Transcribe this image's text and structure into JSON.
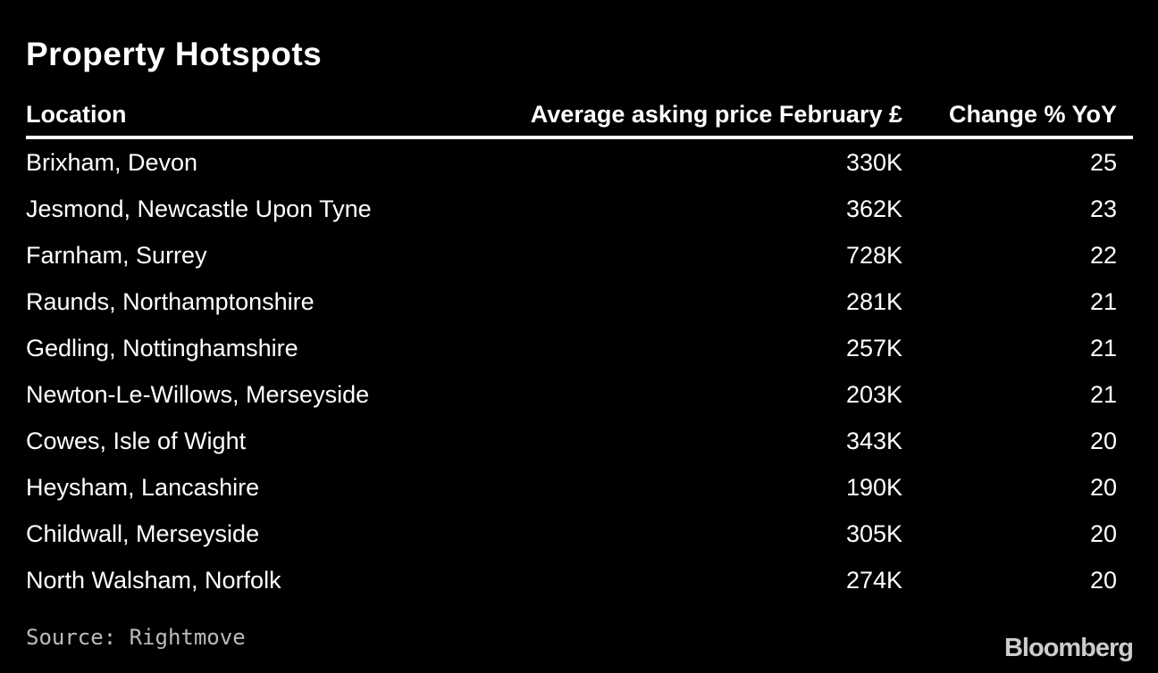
{
  "header": {
    "title": "Property Hotspots"
  },
  "table": {
    "columns": [
      "Location",
      "Average asking price February £",
      "Change % YoY"
    ],
    "rows": [
      [
        "Brixham, Devon",
        "330K",
        "25"
      ],
      [
        "Jesmond, Newcastle Upon Tyne",
        "362K",
        "23"
      ],
      [
        "Farnham, Surrey",
        "728K",
        "22"
      ],
      [
        "Raunds, Northamptonshire",
        "281K",
        "21"
      ],
      [
        "Gedling, Nottinghamshire",
        "257K",
        "21"
      ],
      [
        "Newton-Le-Willows, Merseyside",
        "203K",
        "21"
      ],
      [
        "Cowes, Isle of Wight",
        "343K",
        "20"
      ],
      [
        "Heysham, Lancashire",
        "190K",
        "20"
      ],
      [
        "Childwall, Merseyside",
        "305K",
        "20"
      ],
      [
        "North Walsham, Norfolk",
        "274K",
        "20"
      ]
    ]
  },
  "footer": {
    "source": "Source: Rightmove",
    "brand": "Bloomberg"
  }
}
